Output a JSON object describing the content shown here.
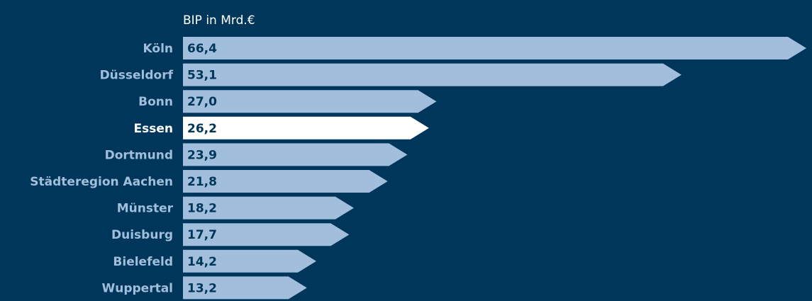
{
  "chart_data": {
    "type": "bar",
    "orientation": "horizontal",
    "title": "BIP in Mrd.€",
    "categories": [
      "Köln",
      "Düsseldorf",
      "Bonn",
      "Essen",
      "Dortmund",
      "Städteregion Aachen",
      "Münster",
      "Duisburg",
      "Bielefeld",
      "Wuppertal"
    ],
    "values": [
      66.4,
      53.1,
      27.0,
      26.2,
      23.9,
      21.8,
      18.2,
      17.7,
      14.2,
      13.2
    ],
    "value_labels": [
      "66,4",
      "53,1",
      "27,0",
      "26,2",
      "23,9",
      "21,8",
      "18,2",
      "17,7",
      "14,2",
      "13,2"
    ],
    "highlight_category": "Essen",
    "xlim": [
      0,
      66.4
    ],
    "grid": false,
    "legend": "none"
  },
  "colors": {
    "background": "#00365a",
    "bar": "#a1bfdc",
    "bar_highlight": "#ffffff",
    "label": "#a1bfdc",
    "label_highlight": "#ffffff",
    "value_text": "#00365a",
    "title": "#ffffff"
  }
}
